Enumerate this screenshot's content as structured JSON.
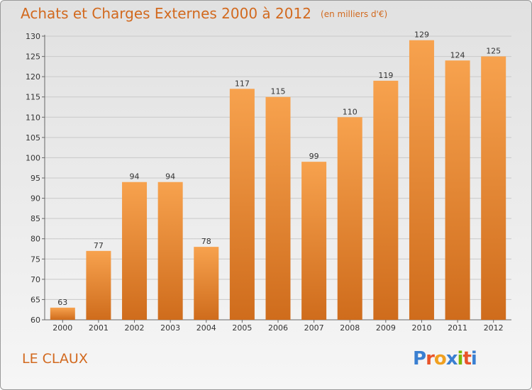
{
  "header": {
    "title": "Achats et Charges Externes 2000 à 2012",
    "unit": "(en milliers d'€)"
  },
  "footer": {
    "place": "LE CLAUX",
    "logo": "Proxiti"
  },
  "colors": {
    "accent": "#d2691e",
    "bar_light": "#f7a24e",
    "bar_dark": "#cf6c1c",
    "gridline": "#c9c9c9"
  },
  "chart_data": {
    "type": "bar",
    "title": "Achats et Charges Externes 2000 à 2012",
    "subtitle": "(en milliers d'€)",
    "categories": [
      "2000",
      "2001",
      "2002",
      "2003",
      "2004",
      "2005",
      "2006",
      "2007",
      "2008",
      "2009",
      "2010",
      "2011",
      "2012"
    ],
    "values": [
      63,
      77,
      94,
      94,
      78,
      117,
      115,
      99,
      110,
      119,
      129,
      124,
      125
    ],
    "xlabel": "",
    "ylabel": "",
    "ylim": [
      60,
      130
    ],
    "yticks": [
      60,
      65,
      70,
      75,
      80,
      85,
      90,
      95,
      100,
      105,
      110,
      115,
      120,
      125,
      130
    ],
    "grid": true,
    "legend": "none"
  }
}
